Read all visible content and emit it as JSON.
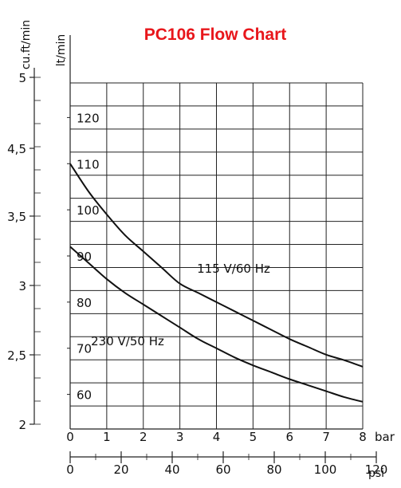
{
  "chart_data": {
    "type": "line",
    "title": "PC106 Flow Chart",
    "title_color": "#e8161b",
    "x_axis": {
      "unit": "bar",
      "range": [
        0,
        8
      ],
      "ticks": [
        0,
        1,
        2,
        3,
        4,
        5,
        6,
        7,
        8
      ],
      "tick_labels": [
        "0",
        "1",
        "2",
        "3",
        "4",
        "5",
        "6",
        "7",
        "8"
      ]
    },
    "x2_axis": {
      "unit": "psi",
      "range": [
        0,
        120
      ],
      "ticks": [
        0,
        20,
        40,
        60,
        80,
        100,
        120
      ],
      "tick_labels": [
        "0",
        "20",
        "40",
        "60",
        "80",
        "100",
        "120"
      ]
    },
    "y_axis": {
      "label": "lt/min",
      "range": [
        52.5,
        127.5
      ],
      "ticks": [
        60,
        70,
        80,
        90,
        100,
        110,
        120
      ],
      "tick_labels": [
        "60",
        "70",
        "80",
        "90",
        "100",
        "110",
        "120"
      ]
    },
    "y2_axis": {
      "label": "cu.ft/min",
      "ticks": [
        2,
        2.5,
        3,
        3.5,
        4.5,
        5
      ],
      "tick_labels": [
        "2",
        "2,5",
        "3",
        "3,5",
        "4,5",
        "5"
      ]
    },
    "grid": true,
    "series": [
      {
        "name": "115 V/60 Hz",
        "x": [
          0,
          0.5,
          1,
          1.5,
          2,
          2.5,
          3,
          3.5,
          4,
          4.5,
          5,
          5.5,
          6,
          6.5,
          7,
          7.5,
          8
        ],
        "y": [
          110,
          104,
          99,
          94.5,
          91,
          87.5,
          84,
          82,
          80,
          78,
          76,
          74,
          72,
          70.3,
          68.6,
          67.4,
          66
        ]
      },
      {
        "name": "230 V/50 Hz",
        "x": [
          0,
          0.5,
          1,
          1.5,
          2,
          2.5,
          3,
          3.5,
          4,
          4.5,
          5,
          5.5,
          6,
          6.5,
          7,
          7.5,
          8
        ],
        "y": [
          92,
          88.5,
          85,
          82,
          79.5,
          77,
          74.5,
          72,
          70,
          68,
          66.3,
          64.8,
          63.3,
          62,
          60.7,
          59.4,
          58.4
        ]
      }
    ]
  }
}
